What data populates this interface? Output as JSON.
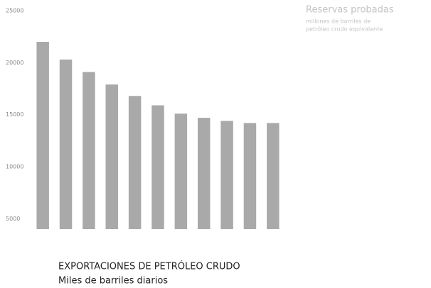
{
  "chart_data": {
    "type": "bar",
    "title": "EXPORTACIONES DE PETRÓLEO CRUDO",
    "subtitle": "Miles de barriles diarios",
    "annotations": [
      "Reservas probadas",
      "millones de barriles de",
      "petróleo crudo equivalente"
    ],
    "categories": [
      null,
      null,
      null,
      null,
      null,
      null,
      null,
      null,
      null,
      null,
      null
    ],
    "values": [
      22000,
      20300,
      19100,
      17900,
      16800,
      15900,
      15100,
      14700,
      14400,
      14200,
      14200
    ],
    "color": "#a9a9a9",
    "ylim": [
      4000,
      25000
    ],
    "yticks": [
      5000,
      10000,
      15000,
      20000,
      25000
    ],
    "grid": false
  }
}
